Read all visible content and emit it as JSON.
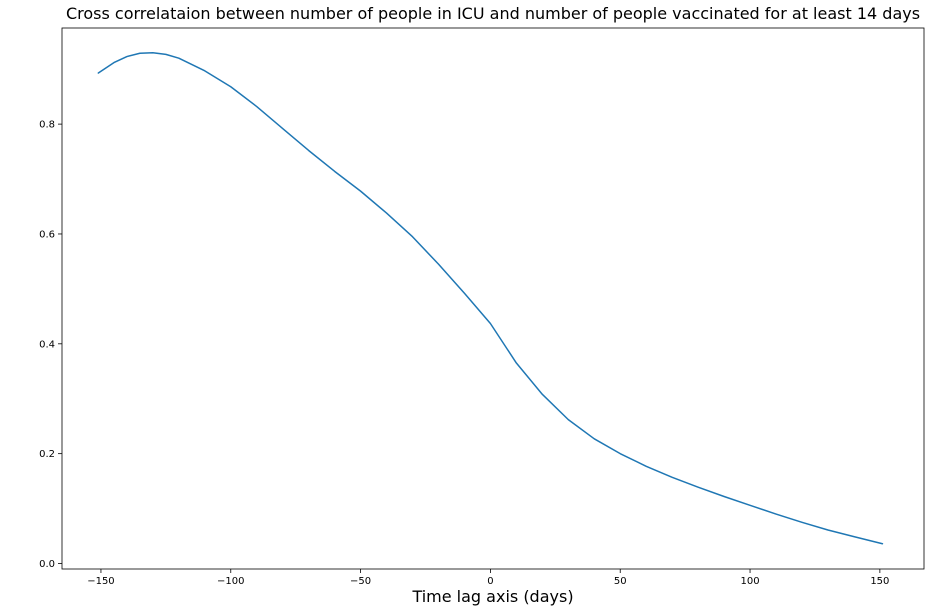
{
  "chart_data": {
    "type": "line",
    "title": "Cross correlataion between number of people in ICU and number of people vaccinated for at least 14 days",
    "xlabel": "Time lag axis (days)",
    "ylabel": "",
    "xlim": [
      -165,
      167
    ],
    "ylim": [
      -0.01,
      0.975
    ],
    "xticks": [
      -150,
      -100,
      -50,
      0,
      50,
      100,
      150
    ],
    "xtick_labels": [
      "−150",
      "−100",
      "−50",
      "0",
      "50",
      "100",
      "150"
    ],
    "yticks": [
      0.0,
      0.2,
      0.4,
      0.6,
      0.8
    ],
    "ytick_labels": [
      "0.0",
      "0.2",
      "0.4",
      "0.6",
      "0.8"
    ],
    "grid": false,
    "line_color": "#1f77b4",
    "series": [
      {
        "x": [
          -151,
          -145,
          -140,
          -135,
          -130,
          -125,
          -120,
          -110,
          -100,
          -90,
          -80,
          -70,
          -60,
          -50,
          -40,
          -30,
          -20,
          -10,
          0,
          10,
          20,
          30,
          40,
          50,
          60,
          70,
          80,
          90,
          100,
          110,
          120,
          130,
          140,
          151
        ],
        "y": [
          0.893,
          0.912,
          0.923,
          0.929,
          0.93,
          0.927,
          0.92,
          0.897,
          0.868,
          0.832,
          0.792,
          0.752,
          0.714,
          0.678,
          0.638,
          0.595,
          0.545,
          0.492,
          0.437,
          0.365,
          0.308,
          0.262,
          0.227,
          0.2,
          0.177,
          0.157,
          0.139,
          0.122,
          0.106,
          0.09,
          0.075,
          0.061,
          0.049,
          0.036
        ]
      }
    ]
  }
}
